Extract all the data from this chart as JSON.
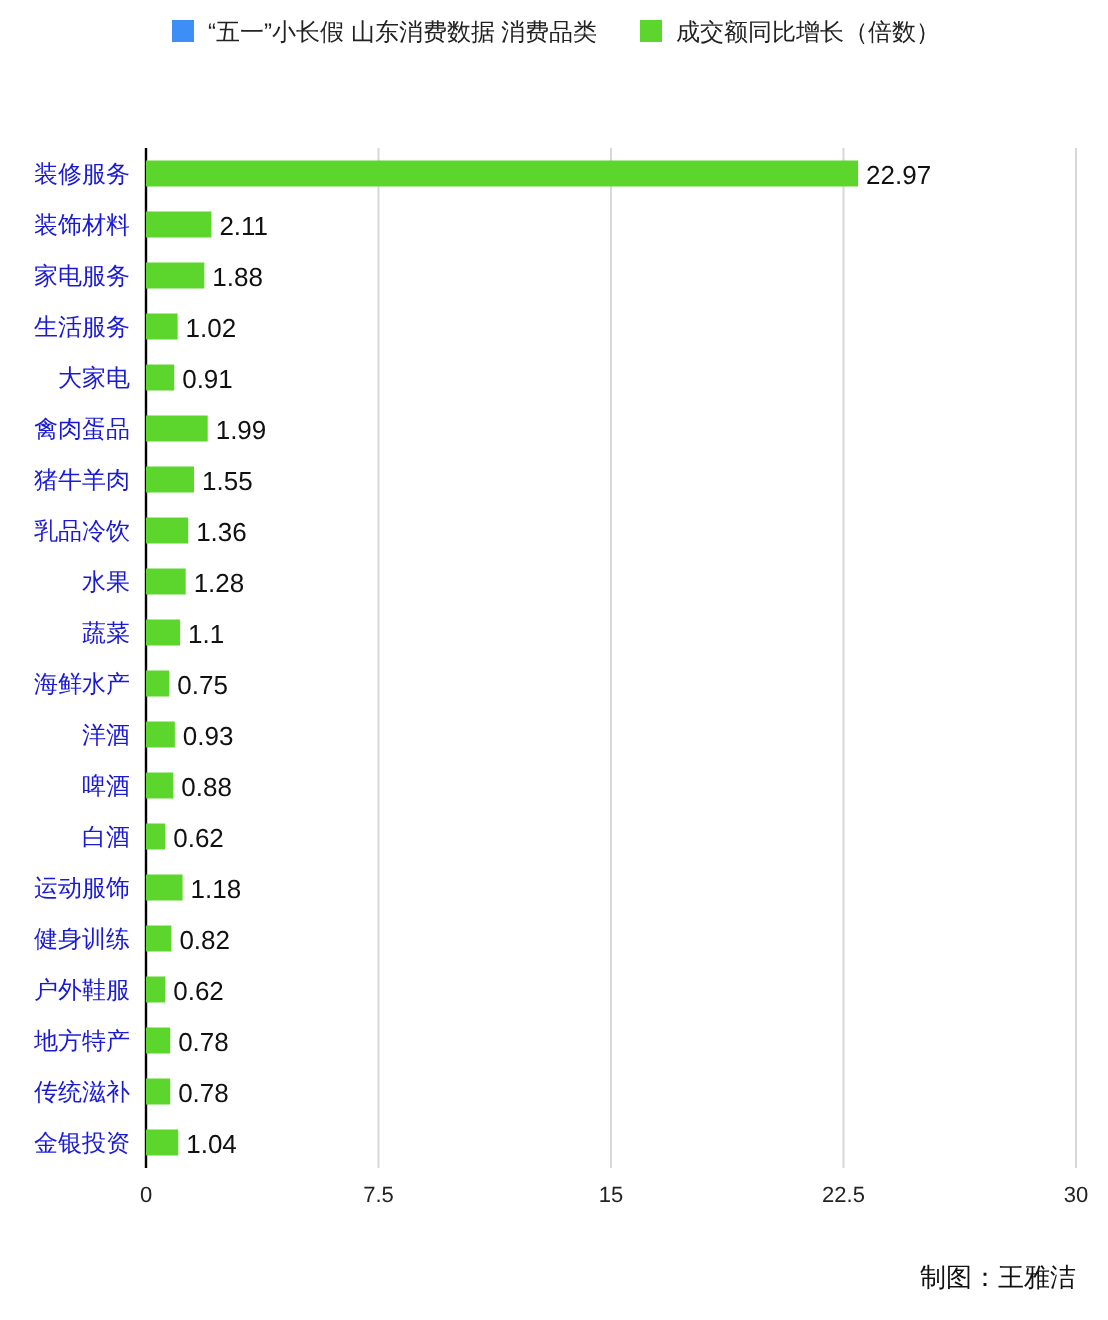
{
  "chart_data": {
    "type": "bar",
    "orientation": "horizontal",
    "categories": [
      "装修服务",
      "装饰材料",
      "家电服务",
      "生活服务",
      "大家电",
      "禽肉蛋品",
      "猪牛羊肉",
      "乳品冷饮",
      "水果",
      "蔬菜",
      "海鲜水产",
      "洋酒",
      "啤酒",
      "白酒",
      "运动服饰",
      "健身训练",
      "户外鞋服",
      "地方特产",
      "传统滋补",
      "金银投资"
    ],
    "series": [
      {
        "name": "“五一”小长假 山东消费数据 消费品类",
        "color": "#3d8ef7",
        "values": [
          null,
          null,
          null,
          null,
          null,
          null,
          null,
          null,
          null,
          null,
          null,
          null,
          null,
          null,
          null,
          null,
          null,
          null,
          null,
          null
        ]
      },
      {
        "name": "成交额同比增长（倍数）",
        "color": "#5cd62c",
        "values": [
          22.97,
          2.11,
          1.88,
          1.02,
          0.91,
          1.99,
          1.55,
          1.36,
          1.28,
          1.1,
          0.75,
          0.93,
          0.88,
          0.62,
          1.18,
          0.82,
          0.62,
          0.78,
          0.78,
          1.04
        ]
      }
    ],
    "xlim": [
      0,
      30
    ],
    "xticks": [
      0,
      7.5,
      15,
      22.5,
      30
    ],
    "grid": "x",
    "legend": "top",
    "data_labels": true,
    "annotations": [
      "制图：王雅洁"
    ]
  }
}
